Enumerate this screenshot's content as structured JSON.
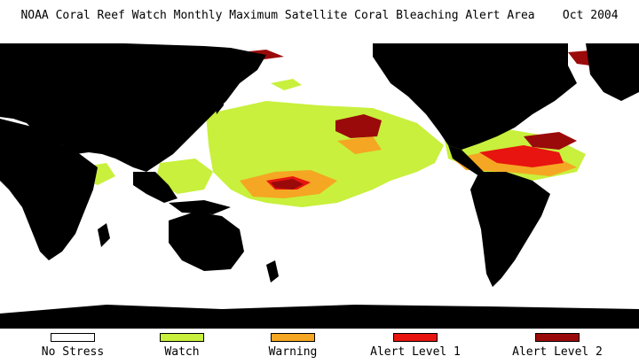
{
  "title": "NOAA Coral Reef Watch Monthly Maximum Satellite Coral Bleaching Alert Area    Oct 2004",
  "colors": {
    "land": "#000000",
    "ocean_no_stress": "#ffffff",
    "watch": "#c8f03c",
    "warning": "#f5a623",
    "alert_level_1": "#e8140f",
    "alert_level_2": "#9b0a0a"
  },
  "legend": [
    {
      "label": "No Stress",
      "color": "#ffffff"
    },
    {
      "label": "Watch",
      "color": "#c8f03c"
    },
    {
      "label": "Warning",
      "color": "#f5a623"
    },
    {
      "label": "Alert Level 1",
      "color": "#e8140f"
    },
    {
      "label": "Alert Level 2",
      "color": "#9b0a0a"
    }
  ]
}
